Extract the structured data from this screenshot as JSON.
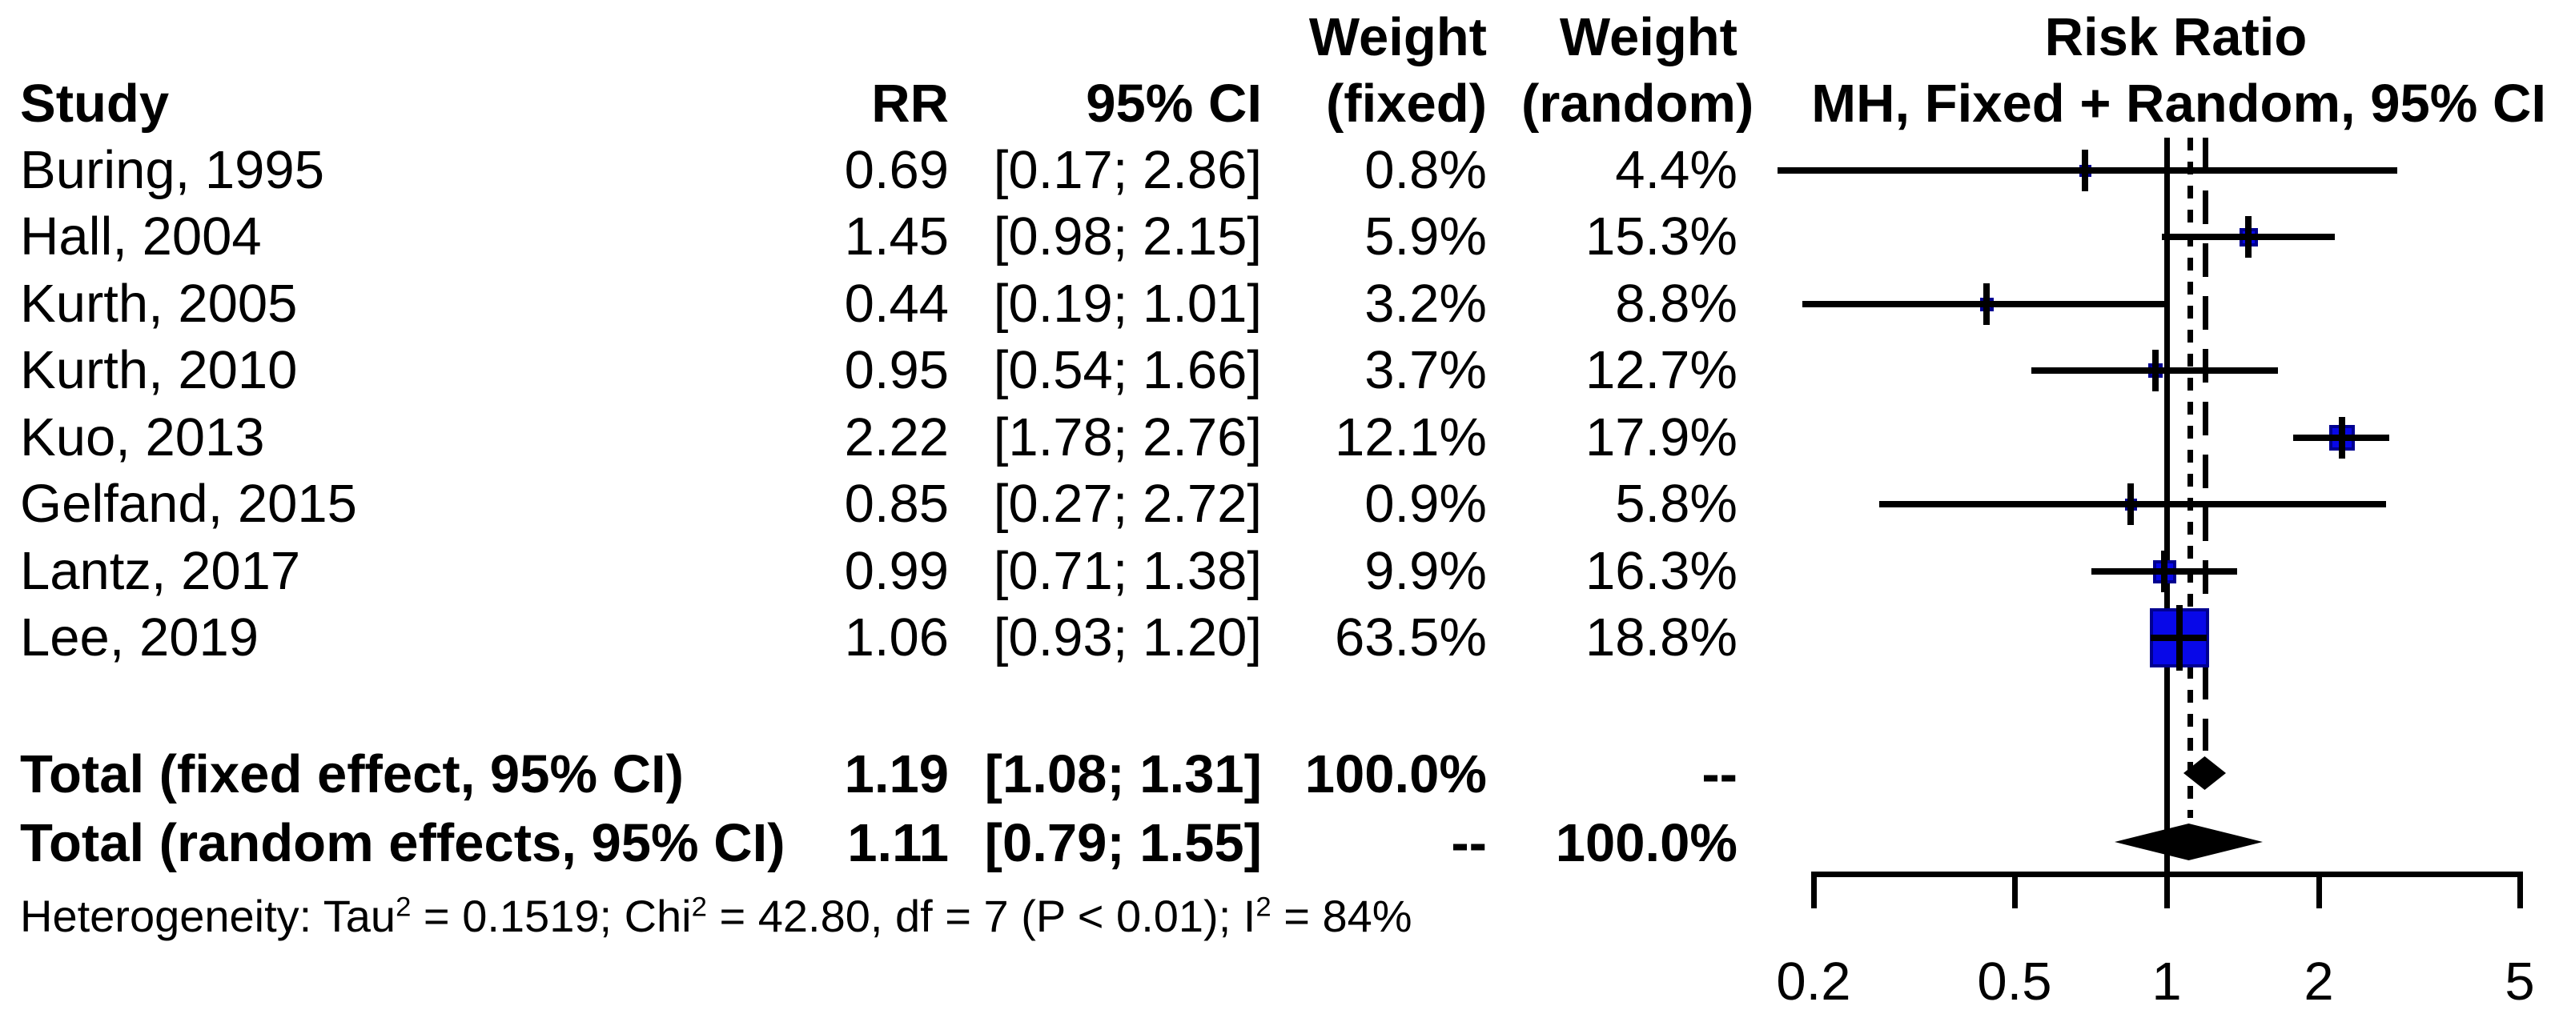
{
  "table": {
    "headers": {
      "study": "Study",
      "rr": "RR",
      "ci": "95% CI",
      "weight_fixed_top": "Weight",
      "weight_fixed_bottom": "(fixed)",
      "weight_random_top": "Weight",
      "weight_random_bottom": "(random)",
      "plot_top": "Risk Ratio",
      "plot_bottom": "MH, Fixed + Random, 95% CI"
    },
    "rows": [
      {
        "study": "Buring, 1995",
        "rr": "0.69",
        "ci": "[0.17; 2.86]",
        "wf": "0.8%",
        "wr": "4.4%"
      },
      {
        "study": "Hall, 2004",
        "rr": "1.45",
        "ci": "[0.98; 2.15]",
        "wf": "5.9%",
        "wr": "15.3%"
      },
      {
        "study": "Kurth, 2005",
        "rr": "0.44",
        "ci": "[0.19; 1.01]",
        "wf": "3.2%",
        "wr": "8.8%"
      },
      {
        "study": "Kurth, 2010",
        "rr": "0.95",
        "ci": "[0.54; 1.66]",
        "wf": "3.7%",
        "wr": "12.7%"
      },
      {
        "study": "Kuo, 2013",
        "rr": "2.22",
        "ci": "[1.78; 2.76]",
        "wf": "12.1%",
        "wr": "17.9%"
      },
      {
        "study": "Gelfand, 2015",
        "rr": "0.85",
        "ci": "[0.27; 2.72]",
        "wf": "0.9%",
        "wr": "5.8%"
      },
      {
        "study": "Lantz, 2017",
        "rr": "0.99",
        "ci": "[0.71; 1.38]",
        "wf": "9.9%",
        "wr": "16.3%"
      },
      {
        "study": "Lee, 2019",
        "rr": "1.06",
        "ci": "[0.93; 1.20]",
        "wf": "63.5%",
        "wr": "18.8%"
      }
    ],
    "totals": [
      {
        "label": "Total (fixed effect, 95% CI)",
        "rr": "1.19",
        "ci": "[1.08; 1.31]",
        "wf": "100.0%",
        "wr": "--"
      },
      {
        "label": "Total (random effects, 95% CI)",
        "rr": "1.11",
        "ci": "[0.79; 1.55]",
        "wf": "--",
        "wr": "100.0%"
      }
    ],
    "heterogeneity_parts": [
      {
        "t": "Heterogeneity: Tau"
      },
      {
        "sup": "2"
      },
      {
        "t": " = 0.1519; Chi"
      },
      {
        "sup": "2"
      },
      {
        "t": " = 42.80, df = 7 (P < 0.01); I"
      },
      {
        "sup": "2"
      },
      {
        "t": " = 84%"
      }
    ]
  },
  "axis": {
    "tick_labels": [
      "0.2",
      "0.5",
      "1",
      "2",
      "5"
    ],
    "tick_values": [
      0.2,
      0.5,
      1,
      2,
      5
    ]
  },
  "colors": {
    "square_fill": "#0808e8",
    "square_border": "#000090",
    "line": "#000000",
    "diamond": "#000000",
    "text": "#000000",
    "background": "#ffffff"
  },
  "chart_data": {
    "type": "forest",
    "title": "Risk Ratio",
    "model_label": "MH, Fixed + Random, 95% CI",
    "x_scale": "log",
    "x_ticks": [
      0.2,
      0.5,
      1,
      2,
      5
    ],
    "x_range": [
      0.2,
      5
    ],
    "null_line": 1,
    "reference_lines": {
      "null": 1.0,
      "fixed_effect": 1.19,
      "random_effect": 1.11
    },
    "studies": [
      {
        "name": "Buring, 1995",
        "rr": 0.69,
        "ci_low": 0.17,
        "ci_high": 2.86,
        "weight_fixed_pct": 0.8,
        "weight_random_pct": 4.4
      },
      {
        "name": "Hall, 2004",
        "rr": 1.45,
        "ci_low": 0.98,
        "ci_high": 2.15,
        "weight_fixed_pct": 5.9,
        "weight_random_pct": 15.3
      },
      {
        "name": "Kurth, 2005",
        "rr": 0.44,
        "ci_low": 0.19,
        "ci_high": 1.01,
        "weight_fixed_pct": 3.2,
        "weight_random_pct": 8.8
      },
      {
        "name": "Kurth, 2010",
        "rr": 0.95,
        "ci_low": 0.54,
        "ci_high": 1.66,
        "weight_fixed_pct": 3.7,
        "weight_random_pct": 12.7
      },
      {
        "name": "Kuo, 2013",
        "rr": 2.22,
        "ci_low": 1.78,
        "ci_high": 2.76,
        "weight_fixed_pct": 12.1,
        "weight_random_pct": 17.9
      },
      {
        "name": "Gelfand, 2015",
        "rr": 0.85,
        "ci_low": 0.27,
        "ci_high": 2.72,
        "weight_fixed_pct": 0.9,
        "weight_random_pct": 5.8
      },
      {
        "name": "Lantz, 2017",
        "rr": 0.99,
        "ci_low": 0.71,
        "ci_high": 1.38,
        "weight_fixed_pct": 9.9,
        "weight_random_pct": 16.3
      },
      {
        "name": "Lee, 2019",
        "rr": 1.06,
        "ci_low": 0.93,
        "ci_high": 1.2,
        "weight_fixed_pct": 63.5,
        "weight_random_pct": 18.8
      }
    ],
    "totals": [
      {
        "name": "Total (fixed effect, 95% CI)",
        "model": "fixed",
        "rr": 1.19,
        "ci_low": 1.08,
        "ci_high": 1.31,
        "weight_fixed_pct": 100.0,
        "weight_random_pct": null
      },
      {
        "name": "Total (random effects, 95% CI)",
        "model": "random",
        "rr": 1.11,
        "ci_low": 0.79,
        "ci_high": 1.55,
        "weight_fixed_pct": null,
        "weight_random_pct": 100.0
      }
    ],
    "heterogeneity": {
      "tau2": 0.1519,
      "chi2": 42.8,
      "df": 7,
      "p": "< 0.01",
      "i2_pct": 84
    }
  }
}
